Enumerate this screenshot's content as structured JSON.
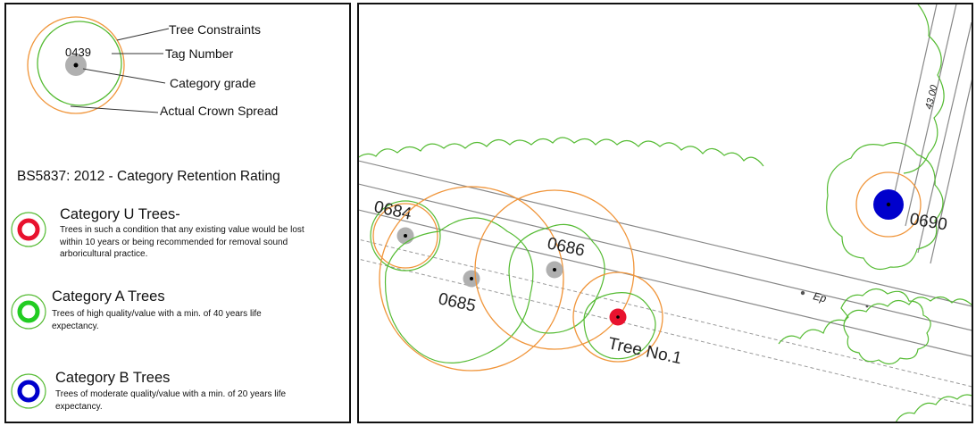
{
  "legend": {
    "sample_tag": "0439",
    "labels": {
      "tree_constraints": "Tree Constraints",
      "tag_number": "Tag Number",
      "category_grade": "Category grade",
      "actual_crown_spread": "Actual Crown Spread"
    },
    "rating_title": "BS5837: 2012 - Category Retention Rating",
    "categories": [
      {
        "title": "Category U Trees-",
        "description": "Trees in such a condition that any existing value would be lost within 10 years or being recommended for removal sound arboricultural practice.",
        "color": "#e8122e"
      },
      {
        "title": "Category A Trees",
        "description": "Trees of high quality/value with a min. of 40 years life expectancy.",
        "color": "#22cc22"
      },
      {
        "title": "Category B Trees",
        "description": "Trees of moderate quality/value with a min. of 20 years life expectancy.",
        "color": "#0000cc"
      }
    ],
    "colors": {
      "constraint_orange": "#f0953a",
      "crown_green": "#55bb33",
      "ungraded_grey": "#b0b0b0"
    }
  },
  "map": {
    "tree_tags": {
      "t0684": "0684",
      "t0685": "0685",
      "t0686": "0686",
      "t0690": "0690",
      "tree1": "Tree No.1"
    },
    "annotations": {
      "ep": "Ep",
      "level": "43.00"
    }
  }
}
